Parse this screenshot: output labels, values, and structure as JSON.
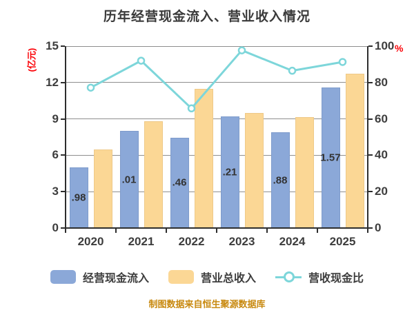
{
  "title": "历年经营现金流入、营业收入情况",
  "source_note": "制图数据来自恒生聚源数据库",
  "axes": {
    "left_unit": "(亿元)",
    "right_unit": "%",
    "left_ticks": [
      15,
      12,
      9,
      6,
      3,
      0
    ],
    "right_ticks": [
      100,
      80,
      60,
      40,
      20,
      0
    ]
  },
  "legend": [
    {
      "label": "经营现金流入",
      "type": "bar",
      "color": "#8ba8d8"
    },
    {
      "label": "营业总收入",
      "type": "bar",
      "color": "#fbd795"
    },
    {
      "label": "营收现金比",
      "type": "line",
      "color": "#7dd6da"
    }
  ],
  "colors": {
    "bar_cash_inflow": "#8ba8d8",
    "bar_revenue": "#fbd795",
    "ratio_line": "#7dd6da",
    "axis_unit_red": "#fb0006",
    "source_orange": "#c8890f"
  },
  "chart_data": {
    "type": "bar",
    "subtype": "grouped-bars-with-line",
    "categories": [
      "2020",
      "2021",
      "2022",
      "2023",
      "2024",
      "2025"
    ],
    "series": [
      {
        "name": "经营现金流入",
        "type": "bar",
        "axis": "left",
        "color": "#8ba8d8",
        "values": [
          4.98,
          8.01,
          7.46,
          9.21,
          7.88,
          11.57
        ],
        "visible_labels": [
          ".98",
          ".01",
          ".46",
          ".21",
          ".88",
          "1.57"
        ]
      },
      {
        "name": "营业总收入",
        "type": "bar",
        "axis": "left",
        "color": "#fbd795",
        "values": [
          6.48,
          8.78,
          11.5,
          9.47,
          9.12,
          12.72
        ]
      },
      {
        "name": "营收现金比",
        "type": "line",
        "axis": "right",
        "color": "#7dd6da",
        "marker": "open-circle",
        "values": [
          77.2,
          92.0,
          65.8,
          97.7,
          86.5,
          91.3
        ]
      }
    ],
    "title": "历年经营现金流入、营业收入情况",
    "xlabel": "",
    "ylabel_left": "(亿元)",
    "ylabel_right": "%",
    "ylim_left": [
      0,
      15
    ],
    "ylim_right": [
      0,
      100
    ],
    "grid": true,
    "legend_position": "bottom"
  }
}
